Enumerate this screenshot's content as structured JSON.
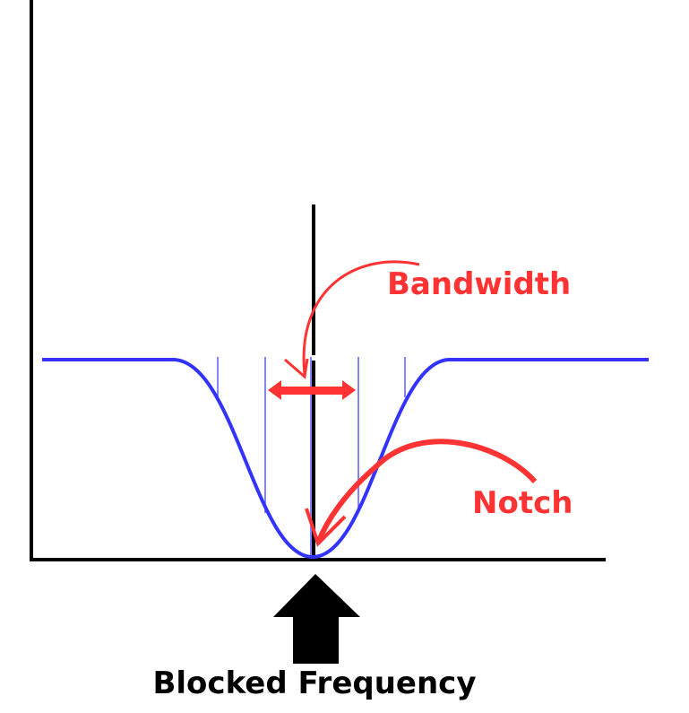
{
  "labels": {
    "bandwidth": "Bandwidth",
    "notch": "Notch",
    "blocked_frequency": "Blocked Frequency"
  },
  "colors": {
    "curve": "#3333ff",
    "annotation": "#ff3333",
    "axes": "#000000"
  }
}
